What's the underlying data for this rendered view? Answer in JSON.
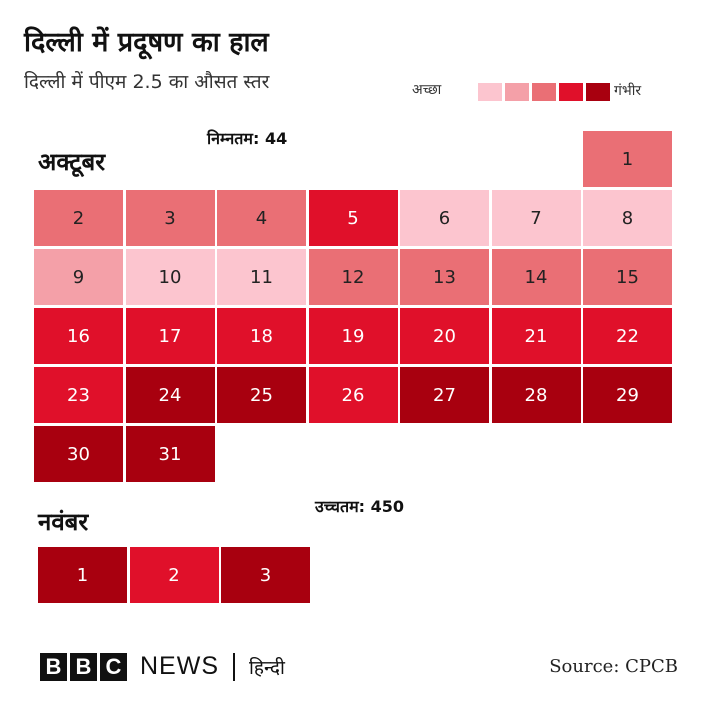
{
  "header": {
    "title": "दिल्ली में प्रदूषण का हाल",
    "subtitle": "दिल्ली में पीएम 2.5 का औसत स्तर"
  },
  "legend": {
    "low_label": "अच्छा",
    "high_label": "गंभीर",
    "colors": [
      "#fcc5cf",
      "#f4a0a8",
      "#ea6f75",
      "#e0102a",
      "#a8000f"
    ]
  },
  "annotations": {
    "min_label": "निम्नतम: 44",
    "max_label": "उच्चतम: 450"
  },
  "footer": {
    "brand_letters": [
      "B",
      "B",
      "C"
    ],
    "news": "NEWS",
    "language": "हिन्दी",
    "source": "Source: CPCB"
  },
  "chart_data": {
    "type": "heatmap",
    "title": "दिल्ली में प्रदूषण का हाल",
    "subtitle": "दिल्ली में पीएम 2.5 का औसत स्तर",
    "scale": {
      "low": "अच्छा",
      "high": "गंभीर"
    },
    "min_value": 44,
    "max_value": 450,
    "months": [
      {
        "name": "अक्टूबर",
        "first_weekday": 6,
        "days": [
          {
            "day": "1",
            "level": 3
          },
          {
            "day": "2",
            "level": 3
          },
          {
            "day": "3",
            "level": 3
          },
          {
            "day": "4",
            "level": 3
          },
          {
            "day": "5",
            "level": 4
          },
          {
            "day": "6",
            "level": 1
          },
          {
            "day": "7",
            "level": 1
          },
          {
            "day": "8",
            "level": 1
          },
          {
            "day": "9",
            "level": 2
          },
          {
            "day": "10",
            "level": 1
          },
          {
            "day": "11",
            "level": 1
          },
          {
            "day": "12",
            "level": 3
          },
          {
            "day": "13",
            "level": 3
          },
          {
            "day": "14",
            "level": 3
          },
          {
            "day": "15",
            "level": 3
          },
          {
            "day": "16",
            "level": 4
          },
          {
            "day": "17",
            "level": 4
          },
          {
            "day": "18",
            "level": 4
          },
          {
            "day": "19",
            "level": 4
          },
          {
            "day": "20",
            "level": 4
          },
          {
            "day": "21",
            "level": 4
          },
          {
            "day": "22",
            "level": 4
          },
          {
            "day": "23",
            "level": 4
          },
          {
            "day": "24",
            "level": 5
          },
          {
            "day": "25",
            "level": 5
          },
          {
            "day": "26",
            "level": 4
          },
          {
            "day": "27",
            "level": 5
          },
          {
            "day": "28",
            "level": 5
          },
          {
            "day": "29",
            "level": 5
          },
          {
            "day": "30",
            "level": 5
          },
          {
            "day": "31",
            "level": 5
          }
        ]
      },
      {
        "name": "नवंबर",
        "first_weekday": 0,
        "days": [
          {
            "day": "1",
            "level": 5
          },
          {
            "day": "2",
            "level": 4
          },
          {
            "day": "3",
            "level": 5
          }
        ]
      }
    ]
  }
}
